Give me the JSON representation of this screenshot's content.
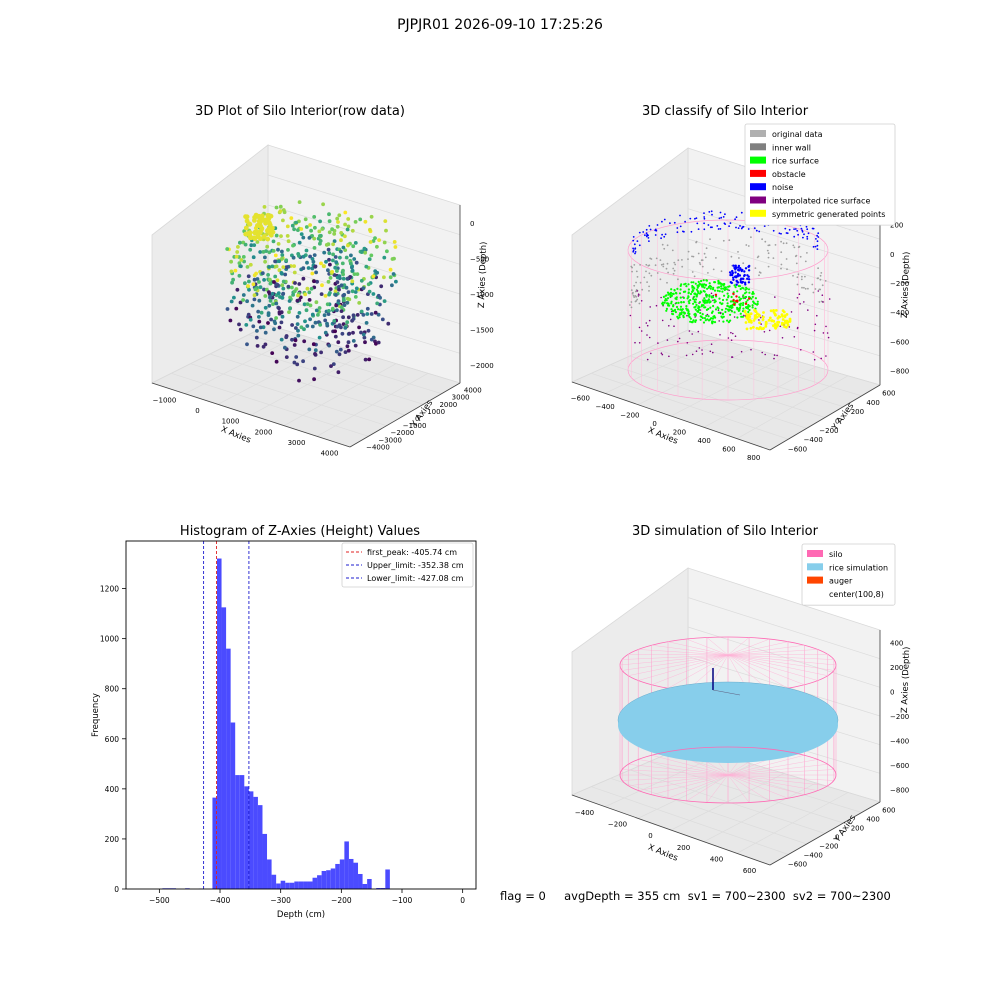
{
  "figure": {
    "suptitle": "PJPJR01 2026-09-10 17:25:26",
    "status_line": "flag = 0     avgDepth = 355 cm  sv1 = 700~2300  sv2 = 700~2300"
  },
  "colors": {
    "histogram_bar": "#4b4bff",
    "first_peak": "#e02020",
    "limits": "#1c1ccf",
    "silo": "#ff69b4",
    "rice_simulation": "#87ceeb",
    "auger": "#ff4500",
    "rice_surface": "#00ff00",
    "obstacle": "#ff0000",
    "noise": "#0000ff",
    "interpolated": "#800080",
    "symmetric": "#ffff00",
    "original": "#b0b0b0",
    "inner_wall": "#808080"
  },
  "chart_data": [
    {
      "type": "scatter3d",
      "title": "3D Plot of Silo Interior(row data)",
      "xlabel": "X Axies",
      "ylabel": "Y Axies",
      "zlabel": "Z Axies (Depth)",
      "x_ticks": [
        "−1000",
        "0",
        "1000",
        "2000",
        "3000",
        "4000"
      ],
      "y_ticks": [
        "4000",
        "3000",
        "2000",
        "1000",
        "0",
        "−1000",
        "−2000",
        "−3000",
        "−4000"
      ],
      "z_ticks": [
        "0",
        "−500",
        "−1000",
        "−1500",
        "−2000"
      ],
      "colormap": "viridis"
    },
    {
      "type": "scatter3d",
      "title": "3D classify of Silo Interior",
      "xlabel": "X Axies",
      "ylabel": "Y Axies",
      "zlabel": "Z Axies (Depth)",
      "x_ticks": [
        "−600",
        "−400",
        "−200",
        "0",
        "200",
        "400",
        "600",
        "800"
      ],
      "y_ticks": [
        "600",
        "400",
        "200",
        "0",
        "−200",
        "−400",
        "−600"
      ],
      "z_ticks": [
        "200",
        "0",
        "−200",
        "−400",
        "−600",
        "−800"
      ],
      "legend": [
        {
          "label": "original data",
          "color": "#b0b0b0"
        },
        {
          "label": "inner wall",
          "color": "#808080"
        },
        {
          "label": "rice surface",
          "color": "#00ff00"
        },
        {
          "label": "obstacle",
          "color": "#ff0000"
        },
        {
          "label": "noise",
          "color": "#0000ff"
        },
        {
          "label": "interpolated rice surface",
          "color": "#800080"
        },
        {
          "label": "symmetric generated points",
          "color": "#ffff00"
        }
      ]
    },
    {
      "type": "bar",
      "title": "Histogram of Z-Axies (Height) Values",
      "xlabel": "Depth (cm)",
      "ylabel": "Frequency",
      "xlim": [
        -555,
        22
      ],
      "ylim": [
        0,
        1390
      ],
      "x_ticks": [
        -500,
        -400,
        -300,
        -200,
        -100,
        0
      ],
      "x_tick_labels": [
        "−500",
        "−400",
        "−300",
        "−200",
        "−100",
        "0"
      ],
      "y_ticks": [
        0,
        200,
        400,
        600,
        800,
        1000,
        1200
      ],
      "bin_width": 7.5,
      "bins": [
        {
          "x": -495,
          "y": 3
        },
        {
          "x": -487.5,
          "y": 3
        },
        {
          "x": -480,
          "y": 3
        },
        {
          "x": -457.5,
          "y": 3
        },
        {
          "x": -435,
          "y": 2
        },
        {
          "x": -412.5,
          "y": 365
        },
        {
          "x": -405,
          "y": 1320
        },
        {
          "x": -397.5,
          "y": 1125
        },
        {
          "x": -390,
          "y": 960
        },
        {
          "x": -382.5,
          "y": 665
        },
        {
          "x": -375,
          "y": 455
        },
        {
          "x": -367.5,
          "y": 455
        },
        {
          "x": -360,
          "y": 410
        },
        {
          "x": -352.5,
          "y": 390
        },
        {
          "x": -345,
          "y": 368
        },
        {
          "x": -337.5,
          "y": 335
        },
        {
          "x": -330,
          "y": 220
        },
        {
          "x": -322.5,
          "y": 118
        },
        {
          "x": -315,
          "y": 57
        },
        {
          "x": -307.5,
          "y": 22
        },
        {
          "x": -300,
          "y": 33
        },
        {
          "x": -292.5,
          "y": 25
        },
        {
          "x": -285,
          "y": 25
        },
        {
          "x": -277.5,
          "y": 30
        },
        {
          "x": -270,
          "y": 30
        },
        {
          "x": -262.5,
          "y": 30
        },
        {
          "x": -255,
          "y": 30
        },
        {
          "x": -247.5,
          "y": 45
        },
        {
          "x": -240,
          "y": 55
        },
        {
          "x": -232.5,
          "y": 72
        },
        {
          "x": -225,
          "y": 75
        },
        {
          "x": -217.5,
          "y": 82
        },
        {
          "x": -210,
          "y": 100
        },
        {
          "x": -202.5,
          "y": 118
        },
        {
          "x": -195,
          "y": 190
        },
        {
          "x": -187.5,
          "y": 120
        },
        {
          "x": -180,
          "y": 105
        },
        {
          "x": -172.5,
          "y": 60
        },
        {
          "x": -165,
          "y": 20
        },
        {
          "x": -157.5,
          "y": 40
        },
        {
          "x": -142.5,
          "y": 4
        },
        {
          "x": -135,
          "y": 4
        },
        {
          "x": -127.5,
          "y": 78
        }
      ],
      "lines": [
        {
          "label": "first_peak: -405.74 cm",
          "x": -405.74,
          "color": "#e02020"
        },
        {
          "label": "Upper_limit: -352.38 cm",
          "x": -352.38,
          "color": "#1c1ccf"
        },
        {
          "label": "Lower_limit: -427.08 cm",
          "x": -427.08,
          "color": "#1c1ccf"
        }
      ],
      "legend_position": "upper right"
    },
    {
      "type": "surface3d",
      "title": "3D simulation of Silo Interior",
      "xlabel": "X Axies",
      "ylabel": "Y Axies",
      "zlabel": "Z Axies (Depth)",
      "x_ticks": [
        "−400",
        "−200",
        "0",
        "200",
        "400",
        "600"
      ],
      "y_ticks": [
        "600",
        "400",
        "200",
        "0",
        "−200",
        "−400",
        "−600"
      ],
      "z_ticks": [
        "400",
        "200",
        "0",
        "−200",
        "−400",
        "−600",
        "−800"
      ],
      "legend": [
        {
          "label": "silo",
          "color": "#ff69b4"
        },
        {
          "label": "rice simulation",
          "color": "#87ceeb"
        },
        {
          "label": "auger",
          "color": "#ff4500"
        },
        {
          "label": "center(100,8)",
          "color": ""
        }
      ]
    }
  ]
}
